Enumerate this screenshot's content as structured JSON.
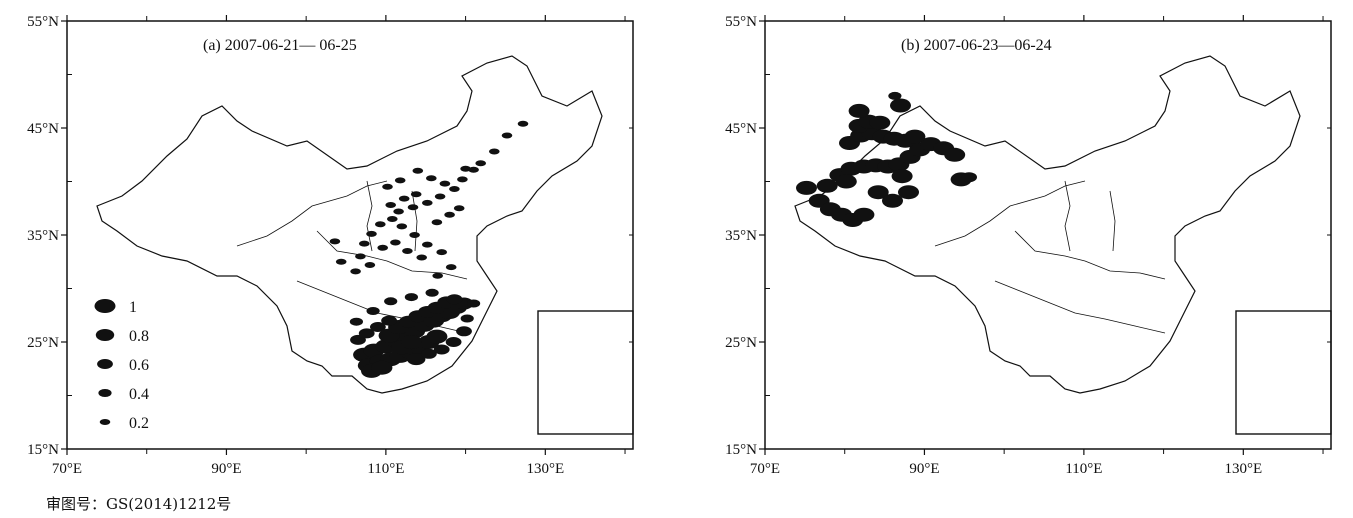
{
  "approval_number": "审图号：GS(2014)1212号",
  "axes": {
    "lat_ticks": [
      15,
      25,
      35,
      45,
      55
    ],
    "lat_labels": [
      "15°N",
      "25°N",
      "35°N",
      "45°N",
      "55°N"
    ],
    "lon_ticks": [
      70,
      90,
      110,
      130
    ],
    "lon_labels": [
      "70°E",
      "90°E",
      "110°E",
      "130°E"
    ],
    "lon_range": [
      70,
      141
    ],
    "lat_range": [
      15,
      55
    ]
  },
  "legend": {
    "entries": [
      {
        "label": "1",
        "value": 1.0
      },
      {
        "label": "0.8",
        "value": 0.8
      },
      {
        "label": "0.6",
        "value": 0.6
      },
      {
        "label": "0.4",
        "value": 0.4
      },
      {
        "label": "0.2",
        "value": 0.2
      }
    ]
  },
  "colors": {
    "markers": "#111111",
    "outline": "#111111",
    "background": "#ffffff"
  },
  "panels": [
    {
      "title": "(a) 2007-06-21— 06-25",
      "has_legend": true,
      "points": [
        [
          107.2,
          23.8,
          1.0
        ],
        [
          108.5,
          24.2,
          1.0
        ],
        [
          110.0,
          24.6,
          1.0
        ],
        [
          111.2,
          25.2,
          1.0
        ],
        [
          112.4,
          25.6,
          1.0
        ],
        [
          113.6,
          26.0,
          1.0
        ],
        [
          114.8,
          26.6,
          1.0
        ],
        [
          116.0,
          27.0,
          1.0
        ],
        [
          117.0,
          27.5,
          1.0
        ],
        [
          118.0,
          27.8,
          1.0
        ],
        [
          119.0,
          28.2,
          0.8
        ],
        [
          119.8,
          28.6,
          0.8
        ],
        [
          107.8,
          22.8,
          1.0
        ],
        [
          109.3,
          23.2,
          1.0
        ],
        [
          110.6,
          23.4,
          1.0
        ],
        [
          111.8,
          23.7,
          1.0
        ],
        [
          113.0,
          24.1,
          1.0
        ],
        [
          114.2,
          24.5,
          1.0
        ],
        [
          115.4,
          25.0,
          1.0
        ],
        [
          116.4,
          25.5,
          1.0
        ],
        [
          112.0,
          24.5,
          1.0
        ],
        [
          113.2,
          25.0,
          1.0
        ],
        [
          110.4,
          25.6,
          1.0
        ],
        [
          111.6,
          26.4,
          1.0
        ],
        [
          112.8,
          26.9,
          0.8
        ],
        [
          114.0,
          27.4,
          0.8
        ],
        [
          115.2,
          27.8,
          0.8
        ],
        [
          116.4,
          28.2,
          0.8
        ],
        [
          117.6,
          28.7,
          0.8
        ],
        [
          118.6,
          29.0,
          0.6
        ],
        [
          106.5,
          25.2,
          0.6
        ],
        [
          107.6,
          25.8,
          0.6
        ],
        [
          109.0,
          26.4,
          0.6
        ],
        [
          110.4,
          27.0,
          0.6
        ],
        [
          108.2,
          22.3,
          1.0
        ],
        [
          109.5,
          22.6,
          1.0
        ],
        [
          113.8,
          23.4,
          0.8
        ],
        [
          115.4,
          23.9,
          0.6
        ],
        [
          117.0,
          24.3,
          0.6
        ],
        [
          118.5,
          25.0,
          0.6
        ],
        [
          119.8,
          26.0,
          0.6
        ],
        [
          120.2,
          27.2,
          0.4
        ],
        [
          121.0,
          28.6,
          0.4
        ],
        [
          115.8,
          29.6,
          0.4
        ],
        [
          113.2,
          29.2,
          0.4
        ],
        [
          110.6,
          28.8,
          0.4
        ],
        [
          108.4,
          27.9,
          0.4
        ],
        [
          106.3,
          26.9,
          0.4
        ],
        [
          116.5,
          31.2,
          0.2
        ],
        [
          118.2,
          32.0,
          0.2
        ],
        [
          117.0,
          33.4,
          0.2
        ],
        [
          115.2,
          34.1,
          0.2
        ],
        [
          113.6,
          35.0,
          0.2
        ],
        [
          112.0,
          35.8,
          0.2
        ],
        [
          110.8,
          36.5,
          0.2
        ],
        [
          111.6,
          37.2,
          0.2
        ],
        [
          113.4,
          37.6,
          0.2
        ],
        [
          115.2,
          38.0,
          0.2
        ],
        [
          116.8,
          38.6,
          0.2
        ],
        [
          118.6,
          39.3,
          0.2
        ],
        [
          119.6,
          40.2,
          0.2
        ],
        [
          117.4,
          39.8,
          0.2
        ],
        [
          115.7,
          40.3,
          0.2
        ],
        [
          113.8,
          38.8,
          0.2
        ],
        [
          112.3,
          38.4,
          0.2
        ],
        [
          110.6,
          37.8,
          0.2
        ],
        [
          109.3,
          36.0,
          0.2
        ],
        [
          108.2,
          35.1,
          0.2
        ],
        [
          107.3,
          34.2,
          0.2
        ],
        [
          106.8,
          33.0,
          0.2
        ],
        [
          109.6,
          33.8,
          0.2
        ],
        [
          111.2,
          34.3,
          0.2
        ],
        [
          112.7,
          33.5,
          0.2
        ],
        [
          114.5,
          32.9,
          0.2
        ],
        [
          116.4,
          36.2,
          0.2
        ],
        [
          118.0,
          36.9,
          0.2
        ],
        [
          119.2,
          37.5,
          0.2
        ],
        [
          120.0,
          41.2,
          0.2
        ],
        [
          121.0,
          41.1,
          0.2
        ],
        [
          121.9,
          41.7,
          0.2
        ],
        [
          123.6,
          42.8,
          0.2
        ],
        [
          125.2,
          44.3,
          0.2
        ],
        [
          127.2,
          45.4,
          0.2
        ],
        [
          108.0,
          32.2,
          0.2
        ],
        [
          106.2,
          31.6,
          0.2
        ],
        [
          104.4,
          32.5,
          0.2
        ],
        [
          103.6,
          34.4,
          0.2
        ],
        [
          110.2,
          39.5,
          0.2
        ],
        [
          111.8,
          40.1,
          0.2
        ],
        [
          114.0,
          41.0,
          0.2
        ]
      ]
    },
    {
      "title": "(b) 2007-06-23—06-24",
      "has_legend": false,
      "points": [
        [
          75.2,
          39.4,
          1.0
        ],
        [
          76.8,
          38.2,
          1.0
        ],
        [
          78.2,
          37.4,
          1.0
        ],
        [
          79.6,
          36.9,
          1.0
        ],
        [
          81.0,
          36.4,
          1.0
        ],
        [
          82.4,
          36.9,
          1.0
        ],
        [
          77.8,
          39.6,
          1.0
        ],
        [
          79.4,
          40.6,
          1.0
        ],
        [
          80.8,
          41.2,
          1.0
        ],
        [
          82.4,
          41.4,
          1.0
        ],
        [
          83.9,
          41.5,
          1.0
        ],
        [
          85.4,
          41.4,
          1.0
        ],
        [
          86.8,
          41.6,
          1.0
        ],
        [
          88.2,
          42.3,
          1.0
        ],
        [
          89.4,
          43.0,
          1.0
        ],
        [
          90.8,
          43.5,
          1.0
        ],
        [
          92.4,
          43.1,
          1.0
        ],
        [
          93.8,
          42.5,
          1.0
        ],
        [
          80.6,
          43.6,
          1.0
        ],
        [
          82.0,
          44.3,
          1.0
        ],
        [
          83.4,
          44.5,
          1.0
        ],
        [
          84.8,
          44.2,
          1.0
        ],
        [
          86.2,
          44.0,
          1.0
        ],
        [
          87.6,
          43.8,
          1.0
        ],
        [
          88.8,
          44.2,
          1.0
        ],
        [
          81.8,
          45.2,
          1.0
        ],
        [
          83.0,
          45.6,
          1.0
        ],
        [
          84.4,
          45.5,
          1.0
        ],
        [
          81.8,
          46.6,
          1.0
        ],
        [
          87.0,
          47.1,
          1.0
        ],
        [
          84.2,
          39.0,
          1.0
        ],
        [
          86.0,
          38.2,
          1.0
        ],
        [
          88.0,
          39.0,
          1.0
        ],
        [
          87.2,
          40.5,
          1.0
        ],
        [
          80.2,
          40.0,
          1.0
        ],
        [
          94.6,
          40.2,
          1.0
        ],
        [
          95.6,
          40.4,
          0.6
        ],
        [
          86.3,
          48.0,
          0.4
        ]
      ]
    }
  ]
}
